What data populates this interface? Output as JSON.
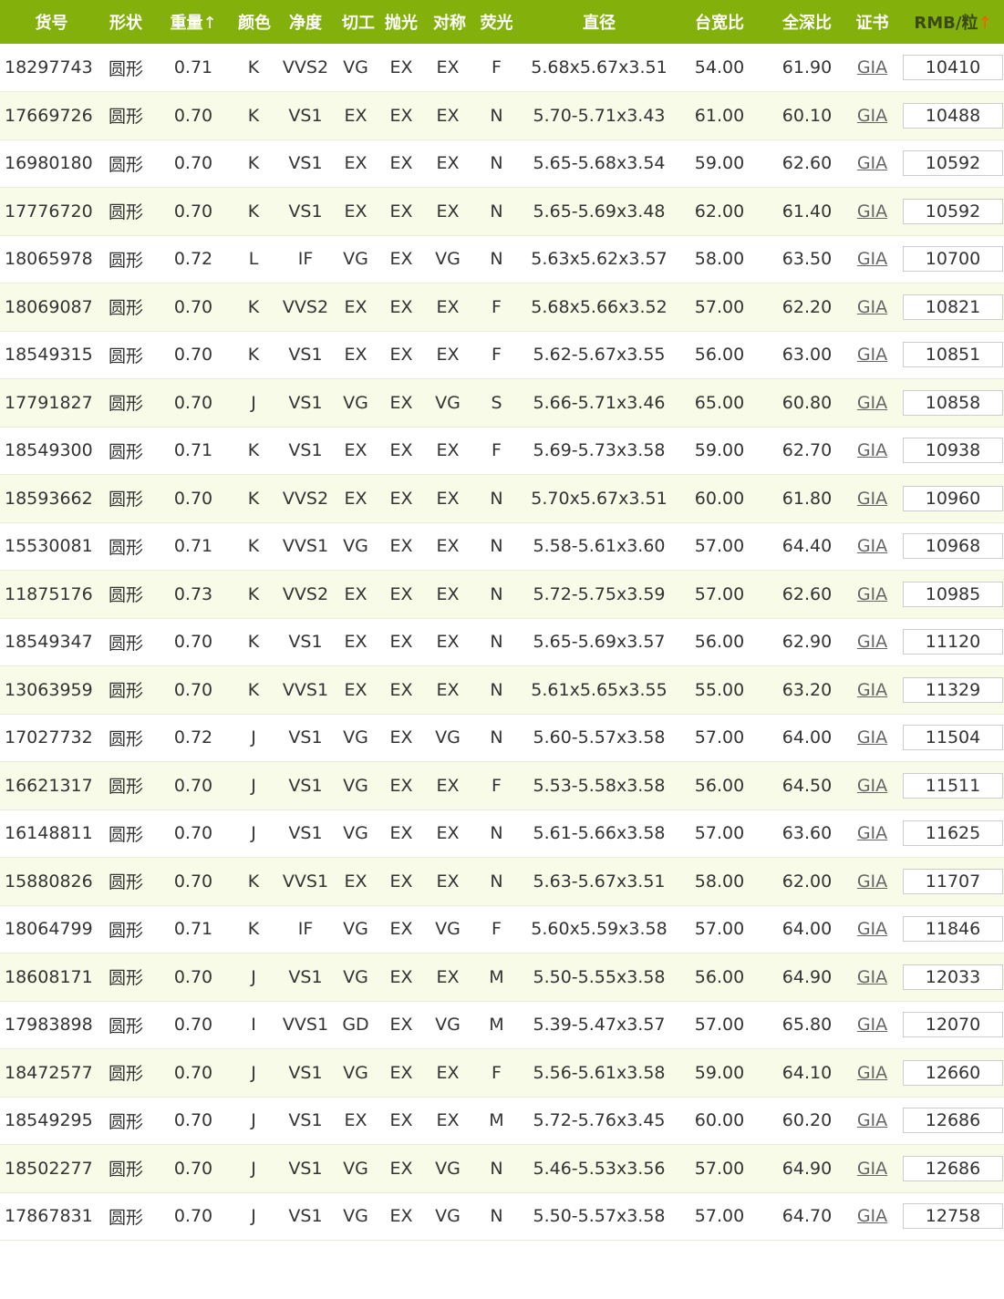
{
  "header": {
    "columns": [
      "货号",
      "形状",
      "重量",
      "颜色",
      "净度",
      "切工",
      "抛光",
      "对称",
      "荧光",
      "直径",
      "台宽比",
      "全深比",
      "证书",
      "RMB/粒"
    ],
    "sort_arrow": "↑",
    "colors": {
      "header_bg": "#84b00c",
      "row_alt_bg": "#f7fbe8",
      "active_sort_arrow": "#ff5a00"
    }
  },
  "rows": [
    [
      "18297743",
      "圆形",
      "0.71",
      "K",
      "VVS2",
      "VG",
      "EX",
      "EX",
      "F",
      "5.68x5.67x3.51",
      "54.00",
      "61.90",
      "GIA",
      "10410"
    ],
    [
      "17669726",
      "圆形",
      "0.70",
      "K",
      "VS1",
      "EX",
      "EX",
      "EX",
      "N",
      "5.70-5.71x3.43",
      "61.00",
      "60.10",
      "GIA",
      "10488"
    ],
    [
      "16980180",
      "圆形",
      "0.70",
      "K",
      "VS1",
      "EX",
      "EX",
      "EX",
      "N",
      "5.65-5.68x3.54",
      "59.00",
      "62.60",
      "GIA",
      "10592"
    ],
    [
      "17776720",
      "圆形",
      "0.70",
      "K",
      "VS1",
      "EX",
      "EX",
      "EX",
      "N",
      "5.65-5.69x3.48",
      "62.00",
      "61.40",
      "GIA",
      "10592"
    ],
    [
      "18065978",
      "圆形",
      "0.72",
      "L",
      "IF",
      "VG",
      "EX",
      "VG",
      "N",
      "5.63x5.62x3.57",
      "58.00",
      "63.50",
      "GIA",
      "10700"
    ],
    [
      "18069087",
      "圆形",
      "0.70",
      "K",
      "VVS2",
      "EX",
      "EX",
      "EX",
      "F",
      "5.68x5.66x3.52",
      "57.00",
      "62.20",
      "GIA",
      "10821"
    ],
    [
      "18549315",
      "圆形",
      "0.70",
      "K",
      "VS1",
      "EX",
      "EX",
      "EX",
      "F",
      "5.62-5.67x3.55",
      "56.00",
      "63.00",
      "GIA",
      "10851"
    ],
    [
      "17791827",
      "圆形",
      "0.70",
      "J",
      "VS1",
      "VG",
      "EX",
      "VG",
      "S",
      "5.66-5.71x3.46",
      "65.00",
      "60.80",
      "GIA",
      "10858"
    ],
    [
      "18549300",
      "圆形",
      "0.71",
      "K",
      "VS1",
      "EX",
      "EX",
      "EX",
      "F",
      "5.69-5.73x3.58",
      "59.00",
      "62.70",
      "GIA",
      "10938"
    ],
    [
      "18593662",
      "圆形",
      "0.70",
      "K",
      "VVS2",
      "EX",
      "EX",
      "EX",
      "N",
      "5.70x5.67x3.51",
      "60.00",
      "61.80",
      "GIA",
      "10960"
    ],
    [
      "15530081",
      "圆形",
      "0.71",
      "K",
      "VVS1",
      "VG",
      "EX",
      "EX",
      "N",
      "5.58-5.61x3.60",
      "57.00",
      "64.40",
      "GIA",
      "10968"
    ],
    [
      "11875176",
      "圆形",
      "0.73",
      "K",
      "VVS2",
      "EX",
      "EX",
      "EX",
      "N",
      "5.72-5.75x3.59",
      "57.00",
      "62.60",
      "GIA",
      "10985"
    ],
    [
      "18549347",
      "圆形",
      "0.70",
      "K",
      "VS1",
      "EX",
      "EX",
      "EX",
      "N",
      "5.65-5.69x3.57",
      "56.00",
      "62.90",
      "GIA",
      "11120"
    ],
    [
      "13063959",
      "圆形",
      "0.70",
      "K",
      "VVS1",
      "EX",
      "EX",
      "EX",
      "N",
      "5.61x5.65x3.55",
      "55.00",
      "63.20",
      "GIA",
      "11329"
    ],
    [
      "17027732",
      "圆形",
      "0.72",
      "J",
      "VS1",
      "VG",
      "EX",
      "VG",
      "N",
      "5.60-5.57x3.58",
      "57.00",
      "64.00",
      "GIA",
      "11504"
    ],
    [
      "16621317",
      "圆形",
      "0.70",
      "J",
      "VS1",
      "VG",
      "EX",
      "EX",
      "F",
      "5.53-5.58x3.58",
      "56.00",
      "64.50",
      "GIA",
      "11511"
    ],
    [
      "16148811",
      "圆形",
      "0.70",
      "J",
      "VS1",
      "VG",
      "EX",
      "EX",
      "N",
      "5.61-5.66x3.58",
      "57.00",
      "63.60",
      "GIA",
      "11625"
    ],
    [
      "15880826",
      "圆形",
      "0.70",
      "K",
      "VVS1",
      "EX",
      "EX",
      "EX",
      "N",
      "5.63-5.67x3.51",
      "58.00",
      "62.00",
      "GIA",
      "11707"
    ],
    [
      "18064799",
      "圆形",
      "0.71",
      "K",
      "IF",
      "VG",
      "EX",
      "VG",
      "F",
      "5.60x5.59x3.58",
      "57.00",
      "64.00",
      "GIA",
      "11846"
    ],
    [
      "18608171",
      "圆形",
      "0.70",
      "J",
      "VS1",
      "VG",
      "EX",
      "EX",
      "M",
      "5.50-5.55x3.58",
      "56.00",
      "64.90",
      "GIA",
      "12033"
    ],
    [
      "17983898",
      "圆形",
      "0.70",
      "I",
      "VVS1",
      "GD",
      "EX",
      "VG",
      "M",
      "5.39-5.47x3.57",
      "57.00",
      "65.80",
      "GIA",
      "12070"
    ],
    [
      "18472577",
      "圆形",
      "0.70",
      "J",
      "VS1",
      "VG",
      "EX",
      "EX",
      "F",
      "5.56-5.61x3.58",
      "59.00",
      "64.10",
      "GIA",
      "12660"
    ],
    [
      "18549295",
      "圆形",
      "0.70",
      "J",
      "VS1",
      "EX",
      "EX",
      "EX",
      "M",
      "5.72-5.76x3.45",
      "60.00",
      "60.20",
      "GIA",
      "12686"
    ],
    [
      "18502277",
      "圆形",
      "0.70",
      "J",
      "VS1",
      "VG",
      "EX",
      "VG",
      "N",
      "5.46-5.53x3.56",
      "57.00",
      "64.90",
      "GIA",
      "12686"
    ],
    [
      "17867831",
      "圆形",
      "0.70",
      "J",
      "VS1",
      "VG",
      "EX",
      "VG",
      "N",
      "5.50-5.57x3.58",
      "57.00",
      "64.70",
      "GIA",
      "12758"
    ]
  ]
}
